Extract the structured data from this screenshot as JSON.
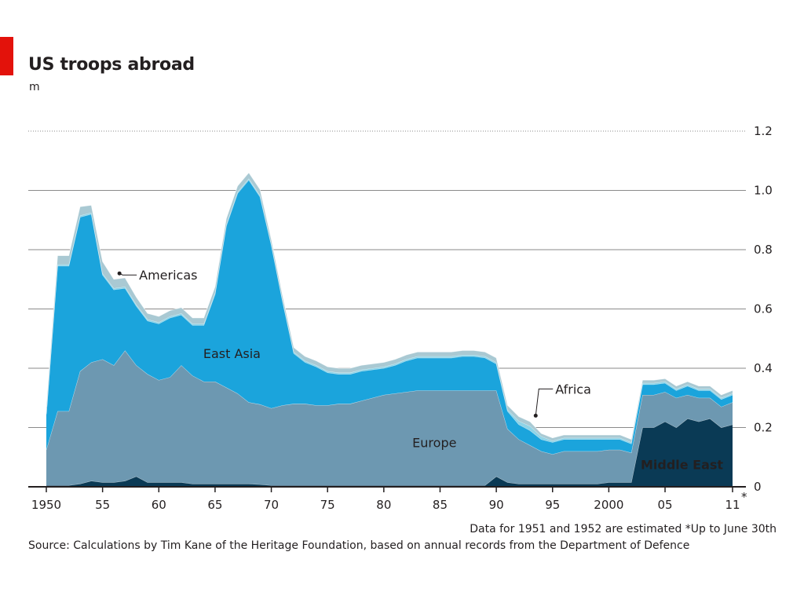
{
  "header": {
    "title": "US troops abroad",
    "unit": "m"
  },
  "footer": {
    "note": "Data for 1951 and 1952 are estimated    *Up to June 30th",
    "source": "Source: Calculations by Tim Kane of the Heritage Foundation, based on annual records from the Department of Defence"
  },
  "colors": {
    "middle_east": "#0a3a55",
    "europe": "#6d98b1",
    "east_asia": "#1ba4dc",
    "africa": "#8fd3e6",
    "americas": "#a9c9d3",
    "grid": "#8a8a8a",
    "accent": "#e3120b"
  },
  "chart_data": {
    "type": "area",
    "stacked": true,
    "title": "US troops abroad",
    "ylabel": "m",
    "ylim": [
      0,
      1.2
    ],
    "yticks": [
      0,
      0.2,
      0.4,
      0.6,
      0.8,
      1.0,
      1.2
    ],
    "ytick_labels": [
      "0",
      "0.2",
      "0.4",
      "0.6",
      "0.8",
      "1.0",
      "1.2"
    ],
    "xlim": [
      1950,
      2011
    ],
    "xticks": [
      1950,
      1955,
      1960,
      1965,
      1970,
      1975,
      1980,
      1985,
      1990,
      1995,
      2000,
      2005,
      2011
    ],
    "xtick_labels": [
      "1950",
      "55",
      "60",
      "65",
      "70",
      "75",
      "80",
      "85",
      "90",
      "95",
      "2000",
      "05",
      "11"
    ],
    "xtick_note": "*",
    "grid": true,
    "legend": "labels-on-areas",
    "x": [
      1950,
      1951,
      1952,
      1953,
      1954,
      1955,
      1956,
      1957,
      1958,
      1959,
      1960,
      1961,
      1962,
      1963,
      1964,
      1965,
      1966,
      1967,
      1968,
      1969,
      1970,
      1971,
      1972,
      1973,
      1974,
      1975,
      1976,
      1977,
      1978,
      1979,
      1980,
      1981,
      1982,
      1983,
      1984,
      1985,
      1986,
      1987,
      1988,
      1989,
      1990,
      1991,
      1992,
      1993,
      1994,
      1995,
      1996,
      1997,
      1998,
      1999,
      2000,
      2001,
      2002,
      2003,
      2004,
      2005,
      2006,
      2007,
      2008,
      2009,
      2010,
      2011
    ],
    "series": [
      {
        "name": "Middle East",
        "values": [
          0.005,
          0.005,
          0.005,
          0.01,
          0.02,
          0.015,
          0.015,
          0.02,
          0.035,
          0.015,
          0.015,
          0.015,
          0.015,
          0.01,
          0.01,
          0.01,
          0.01,
          0.01,
          0.01,
          0.008,
          0.005,
          0.005,
          0.005,
          0.005,
          0.005,
          0.005,
          0.005,
          0.005,
          0.005,
          0.005,
          0.005,
          0.005,
          0.005,
          0.005,
          0.005,
          0.005,
          0.005,
          0.005,
          0.005,
          0.005,
          0.035,
          0.015,
          0.01,
          0.01,
          0.01,
          0.01,
          0.01,
          0.01,
          0.01,
          0.01,
          0.015,
          0.015,
          0.015,
          0.2,
          0.2,
          0.22,
          0.2,
          0.23,
          0.22,
          0.23,
          0.2,
          0.21
        ]
      },
      {
        "name": "Europe",
        "values": [
          0.12,
          0.25,
          0.25,
          0.38,
          0.4,
          0.415,
          0.395,
          0.44,
          0.375,
          0.365,
          0.345,
          0.355,
          0.395,
          0.365,
          0.345,
          0.345,
          0.325,
          0.305,
          0.275,
          0.27,
          0.26,
          0.27,
          0.275,
          0.275,
          0.27,
          0.27,
          0.275,
          0.275,
          0.285,
          0.295,
          0.305,
          0.31,
          0.315,
          0.32,
          0.32,
          0.32,
          0.32,
          0.32,
          0.32,
          0.32,
          0.29,
          0.18,
          0.15,
          0.13,
          0.11,
          0.1,
          0.11,
          0.11,
          0.11,
          0.11,
          0.11,
          0.11,
          0.1,
          0.11,
          0.11,
          0.1,
          0.1,
          0.08,
          0.08,
          0.07,
          0.07,
          0.075
        ]
      },
      {
        "name": "East Asia",
        "values": [
          0.12,
          0.49,
          0.49,
          0.52,
          0.5,
          0.285,
          0.255,
          0.21,
          0.2,
          0.18,
          0.19,
          0.2,
          0.17,
          0.17,
          0.19,
          0.295,
          0.545,
          0.675,
          0.75,
          0.7,
          0.55,
          0.35,
          0.17,
          0.14,
          0.13,
          0.11,
          0.1,
          0.1,
          0.1,
          0.095,
          0.09,
          0.095,
          0.105,
          0.11,
          0.11,
          0.11,
          0.11,
          0.115,
          0.115,
          0.11,
          0.09,
          0.06,
          0.05,
          0.05,
          0.04,
          0.04,
          0.04,
          0.04,
          0.04,
          0.04,
          0.035,
          0.035,
          0.03,
          0.035,
          0.035,
          0.03,
          0.025,
          0.03,
          0.025,
          0.025,
          0.025,
          0.025
        ]
      },
      {
        "name": "Africa",
        "values": [
          0.005,
          0.005,
          0.005,
          0.005,
          0.005,
          0.005,
          0.005,
          0.005,
          0.005,
          0.005,
          0.005,
          0.005,
          0.005,
          0.005,
          0.005,
          0.005,
          0.005,
          0.005,
          0.005,
          0.005,
          0.005,
          0.005,
          0.005,
          0.005,
          0.005,
          0.005,
          0.005,
          0.005,
          0.005,
          0.005,
          0.005,
          0.005,
          0.005,
          0.005,
          0.005,
          0.005,
          0.005,
          0.005,
          0.005,
          0.005,
          0.005,
          0.005,
          0.012,
          0.015,
          0.01,
          0.005,
          0.005,
          0.005,
          0.005,
          0.005,
          0.005,
          0.005,
          0.005,
          0.005,
          0.005,
          0.005,
          0.005,
          0.005,
          0.005,
          0.005,
          0.005,
          0.005
        ]
      },
      {
        "name": "Americas",
        "values": [
          0.02,
          0.03,
          0.03,
          0.03,
          0.025,
          0.04,
          0.03,
          0.03,
          0.025,
          0.02,
          0.02,
          0.02,
          0.02,
          0.02,
          0.02,
          0.02,
          0.02,
          0.02,
          0.02,
          0.02,
          0.015,
          0.015,
          0.015,
          0.015,
          0.015,
          0.015,
          0.015,
          0.015,
          0.015,
          0.015,
          0.015,
          0.015,
          0.015,
          0.015,
          0.015,
          0.015,
          0.015,
          0.015,
          0.015,
          0.015,
          0.015,
          0.015,
          0.015,
          0.015,
          0.01,
          0.01,
          0.01,
          0.01,
          0.01,
          0.01,
          0.01,
          0.01,
          0.01,
          0.01,
          0.01,
          0.01,
          0.01,
          0.01,
          0.01,
          0.01,
          0.01,
          0.01
        ]
      }
    ],
    "annotations": [
      {
        "text": "East Asia",
        "series": "East Asia",
        "style": "inline"
      },
      {
        "text": "Europe",
        "series": "Europe",
        "style": "inline"
      },
      {
        "text": "Middle East",
        "series": "Middle East",
        "style": "inline-white-bold"
      },
      {
        "text": "Americas",
        "series": "Americas",
        "style": "callout",
        "x": 1956.5,
        "y": 0.72
      },
      {
        "text": "Africa",
        "series": "Africa",
        "style": "callout",
        "x": 1993.5,
        "y": 0.24
      }
    ]
  }
}
